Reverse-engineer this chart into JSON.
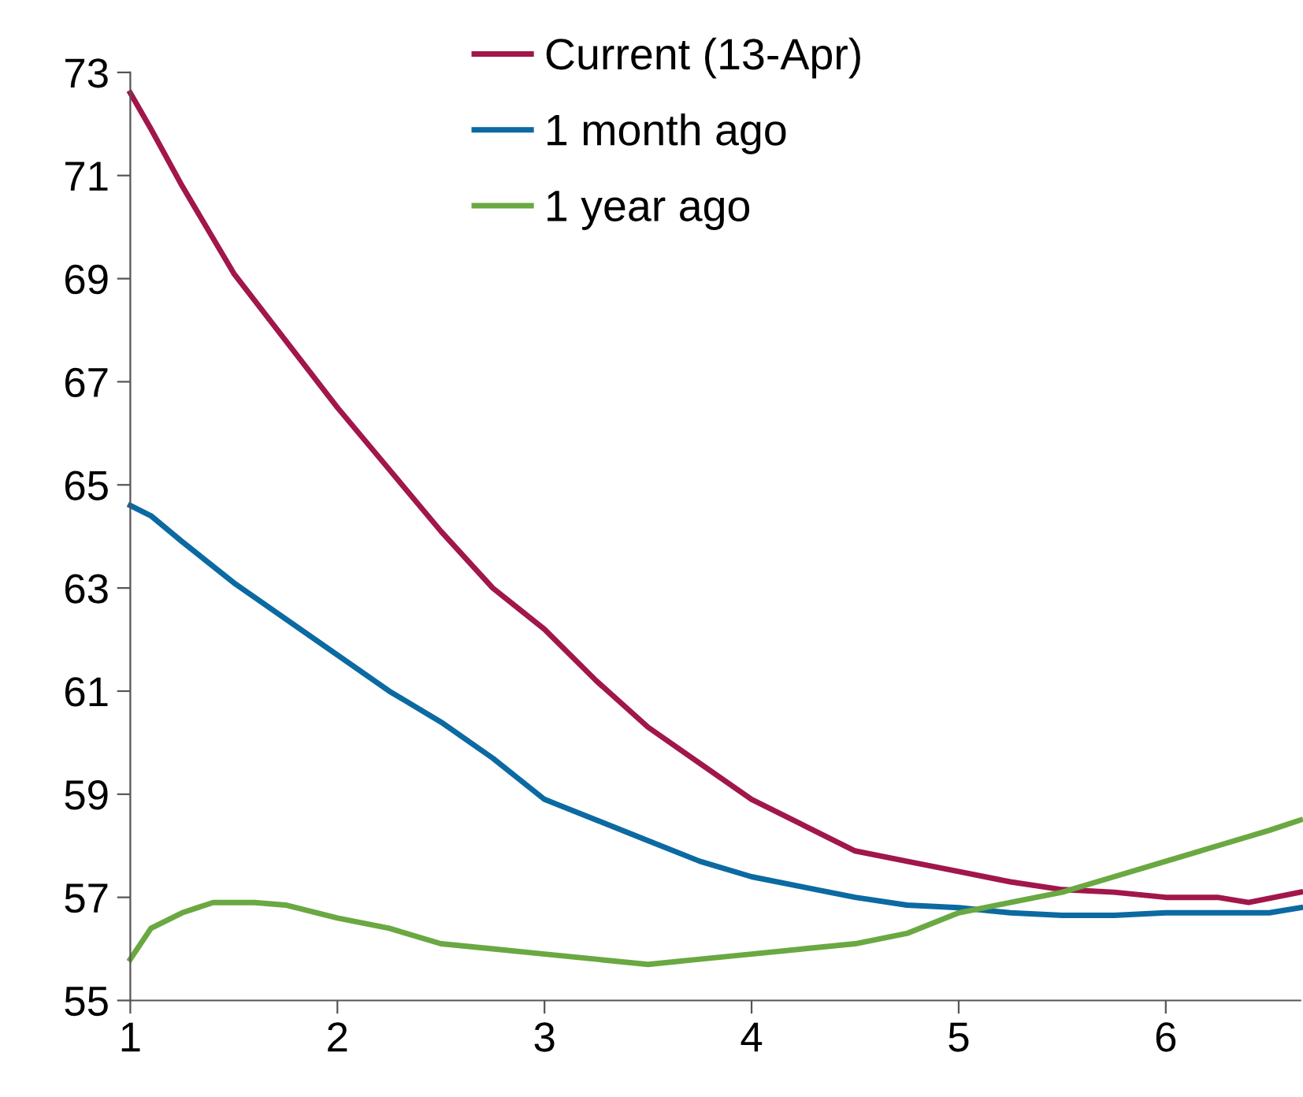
{
  "chart_data": {
    "type": "line",
    "xlim": [
      1,
      6.65
    ],
    "xticks": [
      1,
      2,
      3,
      4,
      5,
      6
    ],
    "ylim": [
      55,
      73
    ],
    "yticks": [
      55,
      57,
      59,
      61,
      63,
      65,
      67,
      69,
      71,
      73
    ],
    "grid": false,
    "legend": "top",
    "marker": "none",
    "line_style": "solid",
    "series": [
      {
        "name": "Current (13-Apr)",
        "color": "#a1164b",
        "x": [
          1,
          1.1,
          1.25,
          1.5,
          1.75,
          2,
          2.25,
          2.5,
          2.75,
          3,
          3.25,
          3.5,
          3.75,
          4,
          4.25,
          4.5,
          4.75,
          5,
          5.25,
          5.5,
          5.75,
          6,
          6.25,
          6.4,
          6.65
        ],
        "values": [
          72.6,
          71.9,
          70.8,
          69.1,
          67.8,
          66.5,
          65.3,
          64.1,
          63.0,
          62.2,
          61.2,
          60.3,
          59.6,
          58.9,
          58.4,
          57.9,
          57.7,
          57.5,
          57.3,
          57.15,
          57.1,
          57.0,
          57.0,
          56.9,
          57.1
        ]
      },
      {
        "name": "1 month ago",
        "color": "#0b6aa2",
        "x": [
          1,
          1.1,
          1.25,
          1.5,
          1.75,
          2,
          2.25,
          2.5,
          2.75,
          3,
          3.25,
          3.5,
          3.75,
          4,
          4.25,
          4.5,
          4.75,
          5,
          5.25,
          5.5,
          5.75,
          6,
          6.25,
          6.5,
          6.65
        ],
        "values": [
          64.6,
          64.4,
          63.9,
          63.1,
          62.4,
          61.7,
          61.0,
          60.4,
          59.7,
          58.9,
          58.5,
          58.1,
          57.7,
          57.4,
          57.2,
          57.0,
          56.85,
          56.8,
          56.7,
          56.65,
          56.65,
          56.7,
          56.7,
          56.7,
          56.8
        ]
      },
      {
        "name": "1 year ago",
        "color": "#6aa842",
        "x": [
          1,
          1.1,
          1.25,
          1.4,
          1.6,
          1.75,
          2,
          2.25,
          2.5,
          2.75,
          3,
          3.25,
          3.5,
          3.75,
          4,
          4.25,
          4.5,
          4.75,
          5,
          5.25,
          5.5,
          5.75,
          6,
          6.25,
          6.5,
          6.65
        ],
        "values": [
          55.8,
          56.4,
          56.7,
          56.9,
          56.9,
          56.85,
          56.6,
          56.4,
          56.1,
          56.0,
          55.9,
          55.8,
          55.7,
          55.8,
          55.9,
          56.0,
          56.1,
          56.3,
          56.7,
          56.9,
          57.1,
          57.4,
          57.7,
          58.0,
          58.3,
          58.5
        ]
      }
    ]
  }
}
